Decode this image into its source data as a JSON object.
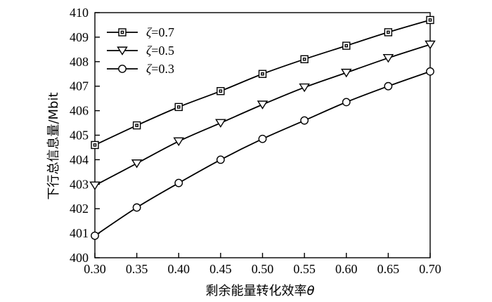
{
  "chart_data": {
    "type": "line",
    "xlabel_prefix": "剩余能量转化效率",
    "xlabel_symbol": "θ",
    "ylabel": "下行总信息量/Mbit",
    "x": [
      0.3,
      0.35,
      0.4,
      0.45,
      0.5,
      0.55,
      0.6,
      0.65,
      0.7
    ],
    "xlim": [
      0.3,
      0.7
    ],
    "ylim": [
      400,
      410
    ],
    "x_ticks": [
      "0.30",
      "0.35",
      "0.40",
      "0.45",
      "0.50",
      "0.55",
      "0.60",
      "0.65",
      "0.70"
    ],
    "y_ticks": [
      "400",
      "401",
      "402",
      "403",
      "404",
      "405",
      "406",
      "407",
      "408",
      "409",
      "410"
    ],
    "grid": false,
    "legend_position": "top-left",
    "series": [
      {
        "name": "ζ=0.7",
        "symbol": "ζ",
        "label_value": "=0.7",
        "marker": "square",
        "values": [
          404.6,
          405.4,
          406.15,
          406.8,
          407.5,
          408.1,
          408.65,
          409.2,
          409.7
        ]
      },
      {
        "name": "ζ=0.5",
        "symbol": "ζ",
        "label_value": "=0.5",
        "marker": "triangle-down",
        "values": [
          402.95,
          403.85,
          404.75,
          405.5,
          406.25,
          406.95,
          407.55,
          408.15,
          408.7
        ]
      },
      {
        "name": "ζ=0.3",
        "symbol": "ζ",
        "label_value": "=0.3",
        "marker": "circle",
        "values": [
          400.9,
          402.05,
          403.05,
          404.0,
          404.85,
          405.6,
          406.35,
          407.0,
          407.6
        ]
      }
    ],
    "colors": {
      "line": "#000000",
      "marker_fill": "#ffffff",
      "background": "#ffffff"
    }
  }
}
